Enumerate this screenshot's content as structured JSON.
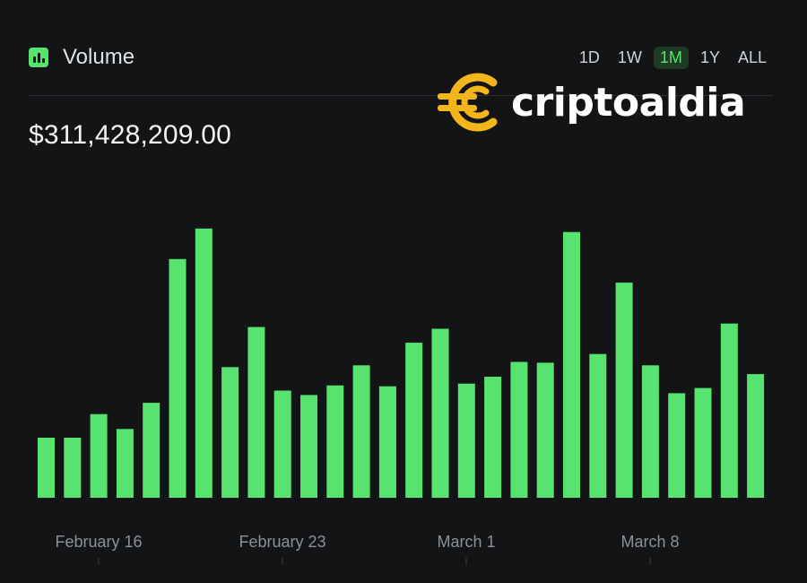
{
  "header": {
    "title": "Volume",
    "icon": "bar-chart-icon",
    "ranges": [
      "1D",
      "1W",
      "1M",
      "1Y",
      "ALL"
    ],
    "active_range": "1M"
  },
  "total_volume": "$311,428,209.00",
  "watermark": {
    "text": "criptoaldia",
    "logo": "criptoaldia-logo"
  },
  "colors": {
    "bar": "#57e36f",
    "background": "#121416",
    "active_range_bg": "#1f3b24"
  },
  "chart_data": {
    "type": "bar",
    "title": "Volume",
    "xlabel": "",
    "ylabel": "",
    "x_ticks": [
      "February 16",
      "February 23",
      "March 1",
      "March 8"
    ],
    "values": [
      6.9,
      6.9,
      9.6,
      7.9,
      10.9,
      27.4,
      30.9,
      15.0,
      19.6,
      12.3,
      11.8,
      12.9,
      15.2,
      12.8,
      17.8,
      19.4,
      13.1,
      13.9,
      15.6,
      15.5,
      30.5,
      16.5,
      24.7,
      15.2,
      12.0,
      12.6,
      20.0,
      14.2
    ],
    "ylim": [
      0,
      35
    ],
    "grid": false
  }
}
